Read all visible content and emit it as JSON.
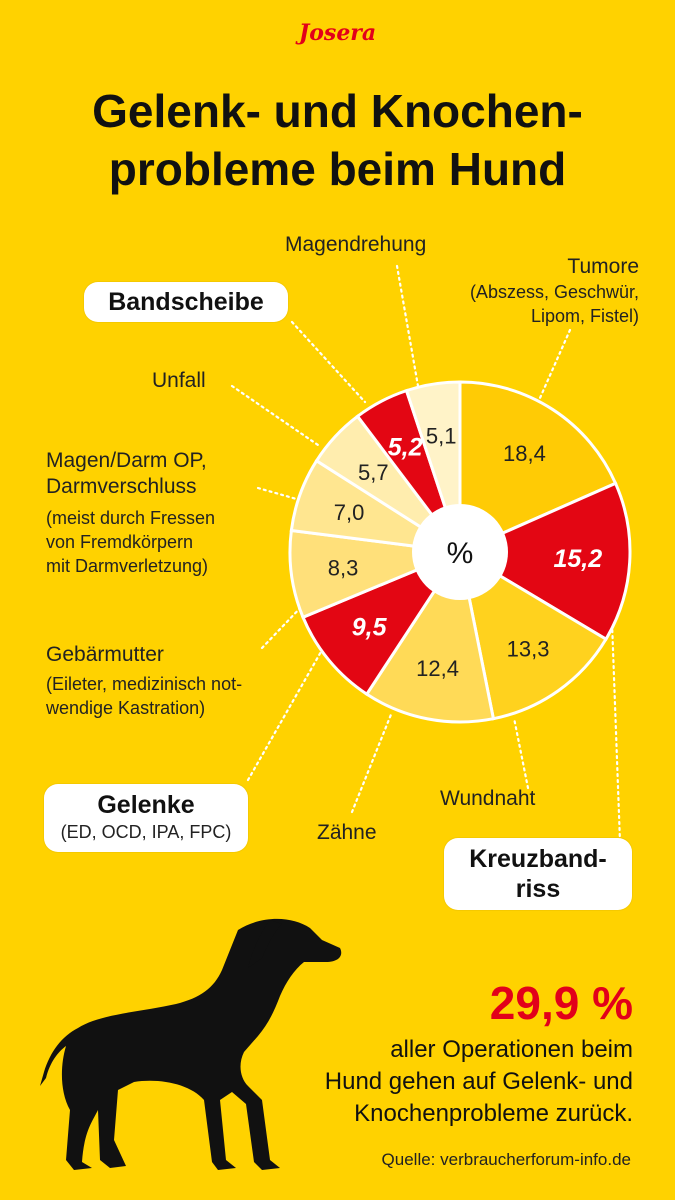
{
  "brand": "Josera",
  "title_line1": "Gelenk- und Knochen-",
  "title_line2": "probleme beim Hund",
  "chart_data": {
    "type": "pie",
    "center_label": "%",
    "slices": [
      {
        "value": 18.4,
        "label": "18,4",
        "color": "#FFCB05",
        "text_color": "#222"
      },
      {
        "value": 15.2,
        "label": "15,2",
        "color": "#E30613",
        "text_color": "#ffffff"
      },
      {
        "value": 13.3,
        "label": "13,3",
        "color": "#FFD21E",
        "text_color": "#222"
      },
      {
        "value": 12.4,
        "label": "12,4",
        "color": "#FFDA57",
        "text_color": "#222"
      },
      {
        "value": 9.5,
        "label": "9,5",
        "color": "#E30613",
        "text_color": "#ffffff"
      },
      {
        "value": 8.3,
        "label": "8,3",
        "color": "#FFE07A",
        "text_color": "#222"
      },
      {
        "value": 7.0,
        "label": "7,0",
        "color": "#FFE690",
        "text_color": "#222"
      },
      {
        "value": 5.7,
        "label": "5,7",
        "color": "#FFEDAE",
        "text_color": "#222"
      },
      {
        "value": 5.2,
        "label": "5,2",
        "color": "#E30613",
        "text_color": "#ffffff"
      },
      {
        "value": 5.1,
        "label": "5,1",
        "color": "#FFF3C8",
        "text_color": "#222"
      }
    ]
  },
  "labels": {
    "tumore": "Tumore",
    "tumore_sub1": "(Abszess, Geschwür,",
    "tumore_sub2": "Lipom, Fistel)",
    "magendrehung": "Magendrehung",
    "bandscheibe": "Bandscheibe",
    "unfall": "Unfall",
    "magendarm1": "Magen/Darm OP,",
    "magendarm2": "Darmverschluss",
    "magendarm_sub1": "(meist durch Fressen",
    "magendarm_sub2": "von Fremdkörpern",
    "magendarm_sub3": "mit Darmverletzung)",
    "gebaermutter": "Gebärmutter",
    "gebaermutter_sub1": "(Eileter, medizinisch not-",
    "gebaermutter_sub2": "wendige Kastration)",
    "gelenke": "Gelenke",
    "gelenke_sub": "(ED, OCD, IPA, FPC)",
    "zaehne": "Zähne",
    "wundnaht": "Wundnaht",
    "kreuzband1": "Kreuzband-",
    "kreuzband2": "riss"
  },
  "stat": {
    "value": "29,9 %",
    "line1": "aller Operationen beim",
    "line2": "Hund gehen auf Gelenk- und",
    "line3": "Knochenprobleme zurück."
  },
  "source": "Quelle: verbraucherforum-info.de",
  "colors": {
    "background": "#FFD200",
    "accent_red": "#E2001A"
  }
}
